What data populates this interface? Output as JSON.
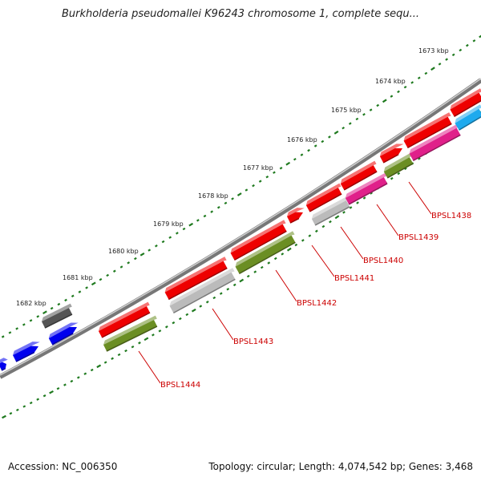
{
  "title": "Burkholderia pseudomallei K96243 chromosome 1, complete sequ...",
  "footer": {
    "accession": "Accession: NC_006350",
    "summary": "Topology: circular; Length: 4,074,542 bp; Genes: 3,468"
  },
  "colors": {
    "red": "#ee0000",
    "grey": "#bbbbbb",
    "dark_grey": "#555555",
    "olive": "#6b8e23",
    "magenta": "#e0208a",
    "blue": "#0000ee",
    "cyan": "#1eaaee",
    "label": "#cc0000",
    "tick": "#1f7a1f"
  },
  "kbp_labels": [
    "1673 kbp",
    "1674 kbp",
    "1675 kbp",
    "1676 kbp",
    "1677 kbp",
    "1678 kbp",
    "1679 kbp",
    "1680 kbp",
    "1681 kbp",
    "1682 kbp"
  ],
  "gene_labels": [
    "BPSL1438",
    "BPSL1439",
    "BPSL1440",
    "BPSL1441",
    "BPSL1442",
    "BPSL1443",
    "BPSL1444"
  ]
}
